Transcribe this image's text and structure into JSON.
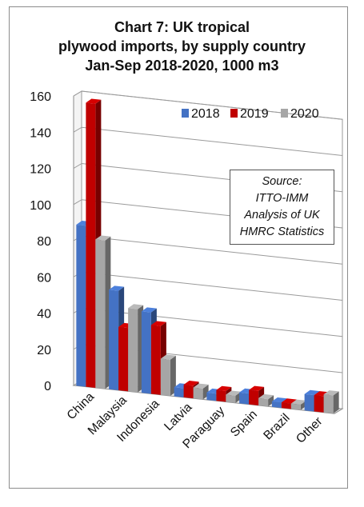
{
  "chart_data": {
    "type": "bar",
    "title_lines": [
      "Chart 7: UK tropical",
      "plywood imports, by supply country",
      "Jan-Sep 2018-2020, 1000 m3"
    ],
    "categories": [
      "China",
      "Malaysia",
      "Indonesia",
      "Latvia",
      "Paraguay",
      "Spain",
      "Brazil",
      "Other"
    ],
    "series": [
      {
        "name": "2018",
        "color": "#4472c4",
        "values": [
          89,
          55,
          45,
          5,
          4,
          6,
          3,
          9
        ]
      },
      {
        "name": "2019",
        "color": "#c00000",
        "values": [
          157,
          35,
          38,
          7,
          6,
          8,
          3,
          9
        ]
      },
      {
        "name": "2020",
        "color": "#a6a6a6",
        "values": [
          82,
          46,
          20,
          6,
          4,
          4,
          3,
          10
        ]
      }
    ],
    "y_ticks": [
      "0",
      "20",
      "40",
      "60",
      "80",
      "100",
      "120",
      "140",
      "160"
    ],
    "ylim": [
      0,
      160
    ],
    "grid": true,
    "legend_position": "top-right",
    "annotation_lines": [
      "Source:",
      "ITTO-IMM",
      "Analysis of UK",
      "HMRC Statistics"
    ]
  }
}
